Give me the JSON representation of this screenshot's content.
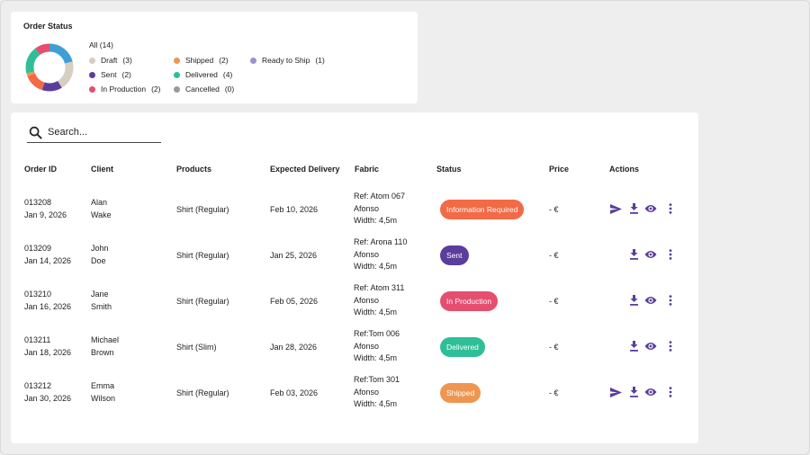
{
  "colors": {
    "accent": "#5b3e9b",
    "draft": "#d6cfc0",
    "sent": "#5b3e9b",
    "in_production": "#e54e6e",
    "shipped": "#ee9651",
    "delivered": "#2fbf98",
    "cancelled": "#9a9a9a",
    "ready_to_ship": "#9b93d0",
    "information_required": "#f26a46",
    "donut_blue": "#3f9ed6"
  },
  "order_status": {
    "title": "Order Status",
    "all_label": "All (14)",
    "legend": [
      {
        "label": "Draft",
        "count": "(3)",
        "color": "#d6cfc0"
      },
      {
        "label": "Sent",
        "count": "(2)",
        "color": "#5b3e9b"
      },
      {
        "label": "In Production",
        "count": "(2)",
        "color": "#e54e6e"
      },
      {
        "label": "Shipped",
        "count": "(2)",
        "color": "#ee9651"
      },
      {
        "label": "Delivered",
        "count": "(4)",
        "color": "#2fbf98"
      },
      {
        "label": "Cancelled",
        "count": "(0)",
        "color": "#9a9a9a"
      },
      {
        "label": "Ready to Ship",
        "count": "(1)",
        "color": "#9b93d0"
      }
    ]
  },
  "search": {
    "placeholder": "Search..."
  },
  "table": {
    "headers": {
      "order_id": "Order ID",
      "client": "Client",
      "products": "Products",
      "expected_delivery": "Expected Delivery",
      "fabric": "Fabric",
      "status": "Status",
      "price": "Price",
      "actions": "Actions"
    },
    "rows": [
      {
        "id": "013208",
        "date": "Jan 9, 2026",
        "first": "Alan",
        "last": "Wake",
        "product": "Shirt (Regular)",
        "delivery": "Feb 10, 2026",
        "fabric_ref": "Ref: Atom 067",
        "fabric_name": "Afonso",
        "fabric_width": "Width: 4,5m",
        "status": "Information Required",
        "status_color": "#f26a46",
        "price": "- €",
        "send_icon": "send-icon"
      },
      {
        "id": "013209",
        "date": "Jan 14, 2026",
        "first": "John",
        "last": "Doe",
        "product": "Shirt (Regular)",
        "delivery": "Jan 25, 2026",
        "fabric_ref": "Ref: Arona 110",
        "fabric_name": "Afonso",
        "fabric_width": "Width: 4,5m",
        "status": "Sent",
        "status_color": "#5b3e9b",
        "price": "- €"
      },
      {
        "id": "013210",
        "date": "Jan 16, 2026",
        "first": "Jane",
        "last": "Smith",
        "product": "Shirt (Regular)",
        "delivery": "Feb 05, 2026",
        "fabric_ref": "Ref: Atom 311",
        "fabric_name": "Afonso",
        "fabric_width": "Width: 4,5m",
        "status": "In Production",
        "status_color": "#e54e6e",
        "price": "- €"
      },
      {
        "id": "013211",
        "date": "Jan 18, 2026",
        "first": "Michael",
        "last": "Brown",
        "product": "Shirt (Slim)",
        "delivery": "Jan 28, 2026",
        "fabric_ref": "Ref:Tom 006",
        "fabric_name": "Afonso",
        "fabric_width": "Width: 4,5m",
        "status": "Delivered",
        "status_color": "#2fbf98",
        "price": "- €"
      },
      {
        "id": "013212",
        "date": "Jan 30, 2026",
        "first": "Emma",
        "last": "Wilson",
        "product": "Shirt (Regular)",
        "delivery": "Feb 03, 2026",
        "fabric_ref": "Ref:Tom 301",
        "fabric_name": "Afonso",
        "fabric_width": "Width: 4,5m",
        "status": "Shipped",
        "status_color": "#ee9651",
        "price": "- €",
        "send_icon": "send-icon"
      }
    ],
    "action_icons": [
      "send-icon",
      "download-icon",
      "eye-icon",
      "more-vertical-icon"
    ]
  }
}
